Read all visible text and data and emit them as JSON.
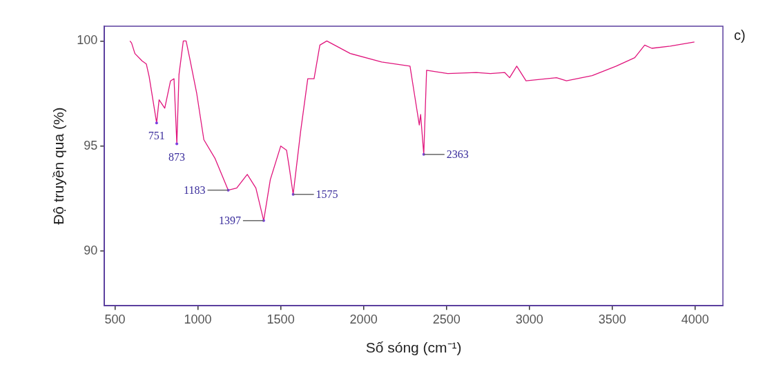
{
  "chart_data": {
    "type": "line",
    "xlabel": "Số sóng (cm⁻¹)",
    "ylabel": "Độ truyền qua (%)",
    "xlim": [
      436,
      4168
    ],
    "ylim": [
      87.4,
      100.7
    ],
    "xticks": [
      500,
      1000,
      1500,
      2000,
      2500,
      3000,
      3500,
      4000
    ],
    "yticks": [
      90,
      95,
      100
    ],
    "grid": false,
    "legend": false,
    "marker": "none",
    "line_style": "solid",
    "series": [
      {
        "color": "#e0147c",
        "x": [
          590,
          600,
          620,
          663,
          689,
          706,
          751,
          766,
          800,
          835,
          856,
          873,
          886,
          912,
          929,
          950,
          993,
          1036,
          1104,
          1183,
          1234,
          1298,
          1350,
          1397,
          1437,
          1500,
          1535,
          1551,
          1575,
          1620,
          1663,
          1701,
          1736,
          1778,
          1920,
          2109,
          2280,
          2306,
          2336,
          2344,
          2363,
          2380,
          2508,
          2680,
          2765,
          2851,
          2881,
          2924,
          2980,
          3164,
          3224,
          3379,
          3524,
          3636,
          3696,
          3739,
          3850,
          3996
        ],
        "values": [
          100,
          99.9,
          99.4,
          99.05,
          98.9,
          98.3,
          96.1,
          97.2,
          96.8,
          98.1,
          98.2,
          95.1,
          98.4,
          100,
          100,
          99.2,
          97.5,
          95.3,
          94.4,
          92.9,
          93,
          93.65,
          93,
          91.45,
          93.4,
          95,
          94.8,
          94,
          92.7,
          95.7,
          98.2,
          98.2,
          99.8,
          100,
          99.4,
          99,
          98.8,
          97.5,
          96,
          96.5,
          94.6,
          98.6,
          98.45,
          98.5,
          98.45,
          98.5,
          98.25,
          98.8,
          98.1,
          98.25,
          98.1,
          98.35,
          98.8,
          99.2,
          99.8,
          99.65,
          99.75,
          99.95
        ]
      }
    ],
    "annotations": [
      "c)",
      {
        "text": "751",
        "x": 751,
        "y": 96.1
      },
      {
        "text": "873",
        "x": 873,
        "y": 95.1
      },
      {
        "text": "1183",
        "x": 1183,
        "y": 92.9
      },
      {
        "text": "1397",
        "x": 1397,
        "y": 91.45
      },
      {
        "text": "1575",
        "x": 1575,
        "y": 92.7
      },
      {
        "text": "2363",
        "x": 2363,
        "y": 94.6
      }
    ]
  }
}
